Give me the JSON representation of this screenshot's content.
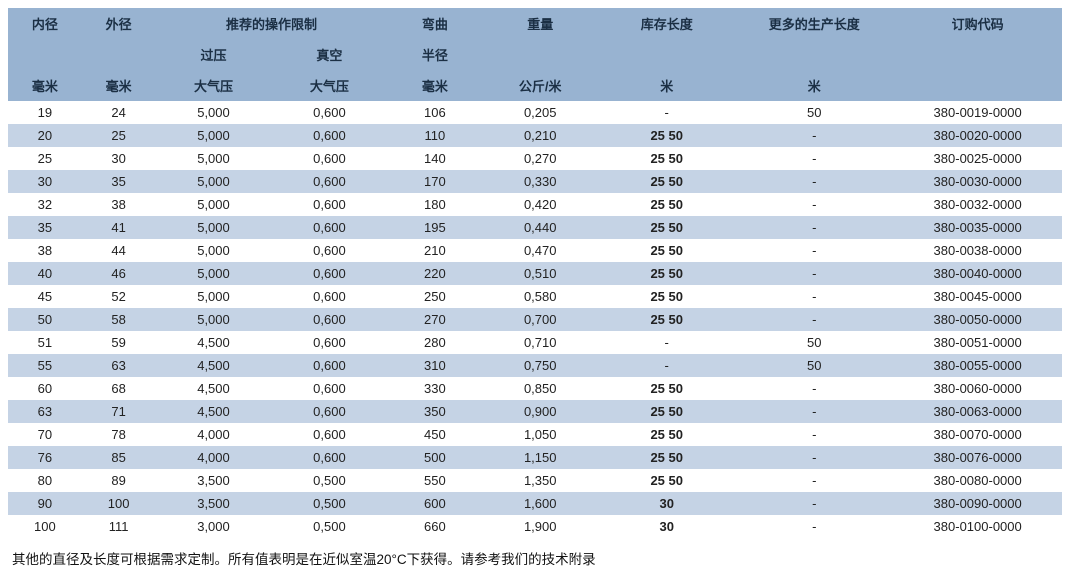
{
  "header": {
    "row1": [
      "内径",
      "外径",
      "推荐的操作限制",
      "弯曲",
      "重量",
      "库存长度",
      "更多的生产长度",
      "订购代码"
    ],
    "row2_op": [
      "过压",
      "真空"
    ],
    "row2_bend": "半径",
    "row3": [
      "毫米",
      "毫米",
      "大气压",
      "大气压",
      "毫米",
      "公斤/米",
      "米",
      "米",
      ""
    ]
  },
  "rows": [
    {
      "id": "19",
      "od": "24",
      "op": "5,000",
      "vac": "0,600",
      "bend": "106",
      "wt": "0,205",
      "stock": "-",
      "prod": "50",
      "code": "380-0019-0000",
      "stockBold": false
    },
    {
      "id": "20",
      "od": "25",
      "op": "5,000",
      "vac": "0,600",
      "bend": "110",
      "wt": "0,210",
      "stock": "25 50",
      "prod": "-",
      "code": "380-0020-0000",
      "stockBold": true
    },
    {
      "id": "25",
      "od": "30",
      "op": "5,000",
      "vac": "0,600",
      "bend": "140",
      "wt": "0,270",
      "stock": "25 50",
      "prod": "-",
      "code": "380-0025-0000",
      "stockBold": true
    },
    {
      "id": "30",
      "od": "35",
      "op": "5,000",
      "vac": "0,600",
      "bend": "170",
      "wt": "0,330",
      "stock": "25 50",
      "prod": "-",
      "code": "380-0030-0000",
      "stockBold": true
    },
    {
      "id": "32",
      "od": "38",
      "op": "5,000",
      "vac": "0,600",
      "bend": "180",
      "wt": "0,420",
      "stock": "25 50",
      "prod": "-",
      "code": "380-0032-0000",
      "stockBold": true
    },
    {
      "id": "35",
      "od": "41",
      "op": "5,000",
      "vac": "0,600",
      "bend": "195",
      "wt": "0,440",
      "stock": "25 50",
      "prod": "-",
      "code": "380-0035-0000",
      "stockBold": true
    },
    {
      "id": "38",
      "od": "44",
      "op": "5,000",
      "vac": "0,600",
      "bend": "210",
      "wt": "0,470",
      "stock": "25 50",
      "prod": "-",
      "code": "380-0038-0000",
      "stockBold": true
    },
    {
      "id": "40",
      "od": "46",
      "op": "5,000",
      "vac": "0,600",
      "bend": "220",
      "wt": "0,510",
      "stock": "25 50",
      "prod": "-",
      "code": "380-0040-0000",
      "stockBold": true
    },
    {
      "id": "45",
      "od": "52",
      "op": "5,000",
      "vac": "0,600",
      "bend": "250",
      "wt": "0,580",
      "stock": "25 50",
      "prod": "-",
      "code": "380-0045-0000",
      "stockBold": true
    },
    {
      "id": "50",
      "od": "58",
      "op": "5,000",
      "vac": "0,600",
      "bend": "270",
      "wt": "0,700",
      "stock": "25 50",
      "prod": "-",
      "code": "380-0050-0000",
      "stockBold": true
    },
    {
      "id": "51",
      "od": "59",
      "op": "4,500",
      "vac": "0,600",
      "bend": "280",
      "wt": "0,710",
      "stock": "-",
      "prod": "50",
      "code": "380-0051-0000",
      "stockBold": false
    },
    {
      "id": "55",
      "od": "63",
      "op": "4,500",
      "vac": "0,600",
      "bend": "310",
      "wt": "0,750",
      "stock": "-",
      "prod": "50",
      "code": "380-0055-0000",
      "stockBold": false
    },
    {
      "id": "60",
      "od": "68",
      "op": "4,500",
      "vac": "0,600",
      "bend": "330",
      "wt": "0,850",
      "stock": "25 50",
      "prod": "-",
      "code": "380-0060-0000",
      "stockBold": true
    },
    {
      "id": "63",
      "od": "71",
      "op": "4,500",
      "vac": "0,600",
      "bend": "350",
      "wt": "0,900",
      "stock": "25 50",
      "prod": "-",
      "code": "380-0063-0000",
      "stockBold": true
    },
    {
      "id": "70",
      "od": "78",
      "op": "4,000",
      "vac": "0,600",
      "bend": "450",
      "wt": "1,050",
      "stock": "25 50",
      "prod": "-",
      "code": "380-0070-0000",
      "stockBold": true
    },
    {
      "id": "76",
      "od": "85",
      "op": "4,000",
      "vac": "0,600",
      "bend": "500",
      "wt": "1,150",
      "stock": "25 50",
      "prod": "-",
      "code": "380-0076-0000",
      "stockBold": true
    },
    {
      "id": "80",
      "od": "89",
      "op": "3,500",
      "vac": "0,500",
      "bend": "550",
      "wt": "1,350",
      "stock": "25 50",
      "prod": "-",
      "code": "380-0080-0000",
      "stockBold": true
    },
    {
      "id": "90",
      "od": "100",
      "op": "3,500",
      "vac": "0,500",
      "bend": "600",
      "wt": "1,600",
      "stock": "30",
      "prod": "-",
      "code": "380-0090-0000",
      "stockBold": true
    },
    {
      "id": "100",
      "od": "111",
      "op": "3,000",
      "vac": "0,500",
      "bend": "660",
      "wt": "1,900",
      "stock": "30",
      "prod": "-",
      "code": "380-0100-0000",
      "stockBold": true
    }
  ],
  "footnote": "其他的直径及长度可根据需求定制。所有值表明是在近似室温20°C下获得。请参考我们的技术附录"
}
